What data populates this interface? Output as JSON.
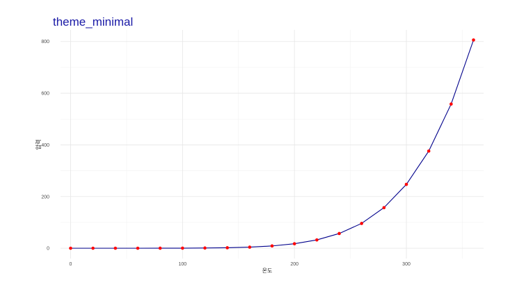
{
  "chart_data": {
    "type": "line",
    "title": "theme_minimal",
    "xlabel": "온도",
    "ylabel": "압력",
    "xlim": [
      -9,
      369
    ],
    "ylim": [
      -40,
      845
    ],
    "x_ticks": [
      0,
      100,
      200,
      300
    ],
    "y_ticks": [
      0,
      200,
      400,
      600,
      800
    ],
    "grid": true,
    "series": [
      {
        "line_color": "#00008b",
        "point_color": "#ff0000",
        "x": [
          0,
          20,
          40,
          60,
          80,
          100,
          120,
          140,
          160,
          180,
          200,
          220,
          240,
          260,
          280,
          300,
          320,
          340,
          360
        ],
        "y": [
          0.0002,
          0.0012,
          0.006,
          0.03,
          0.09,
          0.27,
          0.75,
          1.85,
          4.2,
          8.8,
          17.3,
          32.1,
          57.0,
          96.0,
          157.0,
          247.0,
          376.0,
          558.0,
          806.0
        ]
      }
    ]
  }
}
